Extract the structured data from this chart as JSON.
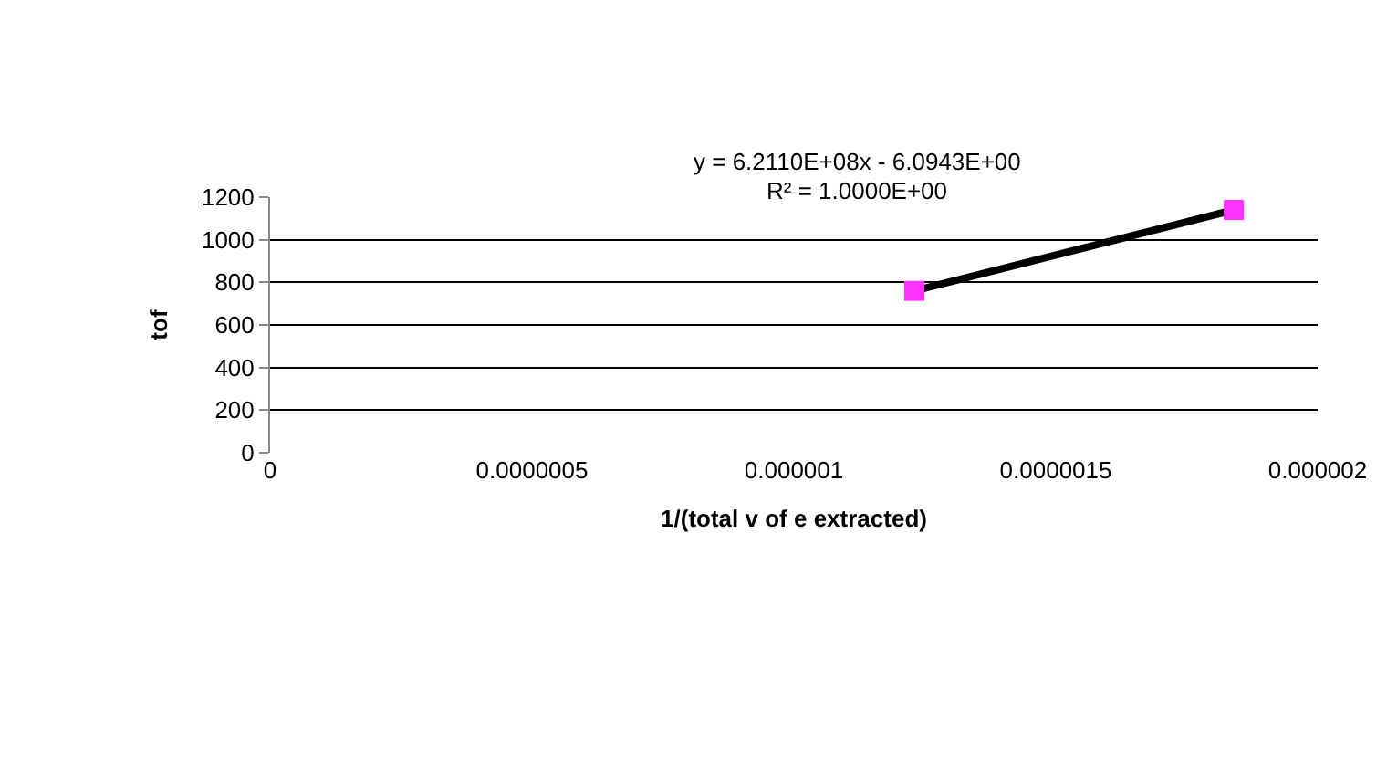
{
  "chart_data": {
    "type": "scatter",
    "xlabel": "1/(total v of e extracted)",
    "ylabel": "tof",
    "annotations": [
      "y = 6.2110E+08x - 6.0943E+00",
      "R² = 1.0000E+00"
    ],
    "series": [
      {
        "type": "line",
        "color": "#000000",
        "values": [
          760,
          1140
        ],
        "marker": "none"
      },
      {
        "color": "#ff33ff",
        "values": [
          760,
          1140
        ],
        "marker": "square"
      }
    ],
    "x": [
      1.23e-06,
      1.84e-06
    ],
    "xlim": [
      0,
      2e-06
    ],
    "xticks": [
      0,
      {
        "value": 5e-07,
        "label": "0.0000005"
      },
      {
        "value": 1e-06,
        "label": "0.000001"
      },
      {
        "value": 1.5e-06,
        "label": "0.0000015"
      },
      {
        "value": 2e-06,
        "label": "0.000002"
      }
    ],
    "ylim": [
      0,
      1200
    ],
    "yticks": [
      0,
      200,
      400,
      600,
      800,
      1000,
      1200
    ],
    "grid": "y"
  }
}
